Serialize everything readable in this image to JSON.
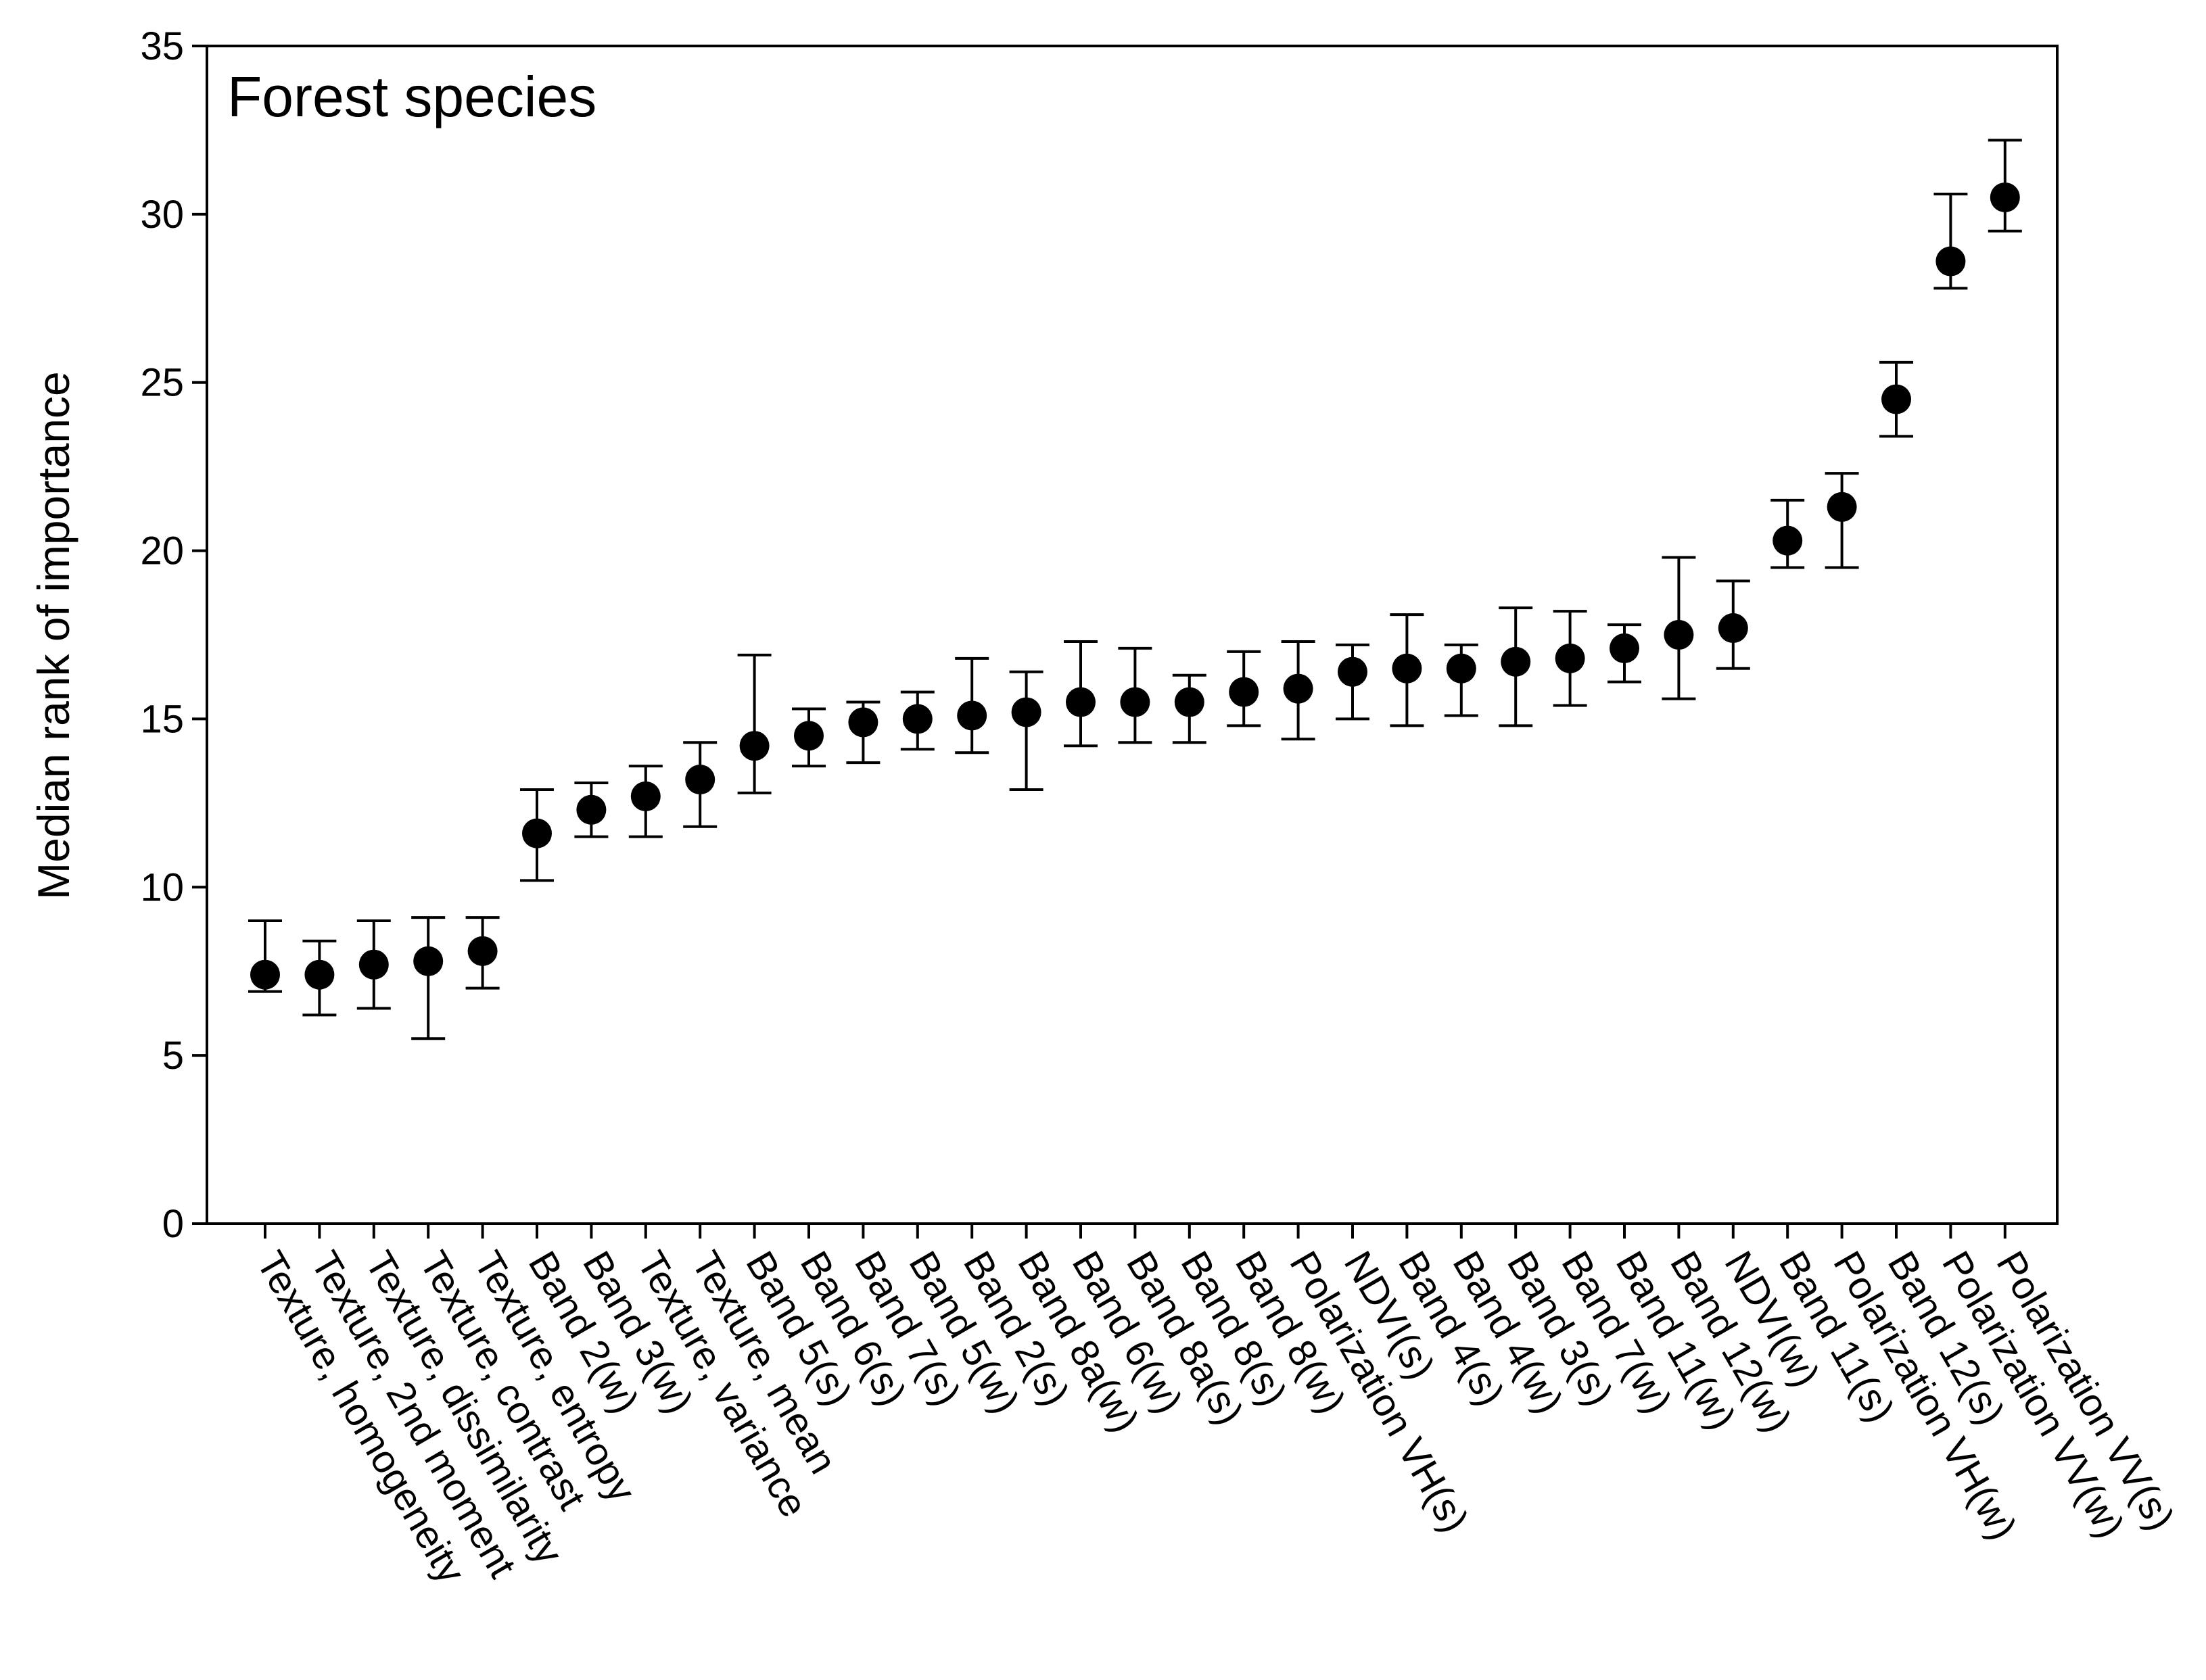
{
  "chart_data": {
    "type": "scatter",
    "title": "Forest species",
    "xlabel": "",
    "ylabel": "Median rank of importance",
    "ylim": [
      0,
      35
    ],
    "yticks": [
      0,
      5,
      10,
      15,
      20,
      25,
      30,
      35
    ],
    "grid": false,
    "legend": "none",
    "marker_color": "#000000",
    "categories": [
      "Texture, homogeneity",
      "Texture, 2nd moment",
      "Texture, dissimilarity",
      "Texture, contrast",
      "Texture, entropy",
      "Band 2(w)",
      "Band 3(w)",
      "Texture, variance",
      "Texture, mean",
      "Band 5(s)",
      "Band 6(s)",
      "Band 7(s)",
      "Band 5(w)",
      "Band 2(s)",
      "Band 8a(w)",
      "Band 6(w)",
      "Band 8a(s)",
      "Band 8(s)",
      "Band 8(w)",
      "Polarization VH(s)",
      "NDVI(s)",
      "Band 4(s)",
      "Band 4(w)",
      "Band 3(s)",
      "Band 7(w)",
      "Band 11(w)",
      "Band 12(w)",
      "NDVI(w)",
      "Band 11(s)",
      "Polarization VH(w)",
      "Band 12(s)",
      "Polarization VV(w)",
      "Polarization VV(s)"
    ],
    "series": [
      {
        "name": "Median rank of importance",
        "values": [
          7.4,
          7.4,
          7.7,
          7.8,
          8.1,
          11.6,
          12.3,
          12.7,
          13.2,
          14.2,
          14.5,
          14.9,
          15.0,
          15.1,
          15.2,
          15.5,
          15.5,
          15.5,
          15.8,
          15.9,
          16.4,
          16.5,
          16.5,
          16.7,
          16.8,
          17.1,
          17.5,
          17.7,
          20.3,
          21.3,
          24.5,
          28.6,
          30.5
        ],
        "error_low": [
          6.9,
          6.2,
          6.4,
          5.5,
          7.0,
          10.2,
          11.5,
          11.5,
          11.8,
          12.8,
          13.6,
          13.7,
          14.1,
          14.0,
          12.9,
          14.2,
          14.3,
          14.3,
          14.8,
          14.4,
          15.0,
          14.8,
          15.1,
          14.8,
          15.4,
          16.1,
          15.6,
          16.5,
          19.5,
          19.5,
          23.4,
          27.8,
          29.5
        ],
        "error_high": [
          9.0,
          8.4,
          9.0,
          9.1,
          9.1,
          12.9,
          13.1,
          13.6,
          14.3,
          16.9,
          15.3,
          15.5,
          15.8,
          16.8,
          16.4,
          17.3,
          17.1,
          16.3,
          17.0,
          17.3,
          17.2,
          18.1,
          17.2,
          18.3,
          18.2,
          17.8,
          19.8,
          19.1,
          21.5,
          22.3,
          25.6,
          30.6,
          32.2
        ]
      }
    ]
  }
}
